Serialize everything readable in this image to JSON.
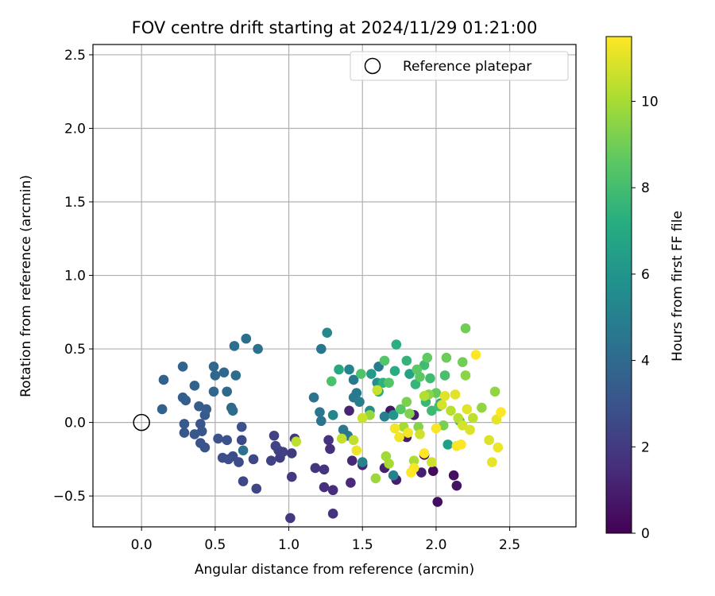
{
  "chart_data": {
    "type": "scatter",
    "title": "FOV centre drift starting at 2024/11/29 01:21:00",
    "xlabel": "Angular distance from reference (arcmin)",
    "ylabel": "Rotation from reference (arcmin)",
    "xlim": [
      -0.33,
      2.95
    ],
    "ylim": [
      -0.71,
      2.57
    ],
    "xticks": [
      0.0,
      0.5,
      1.0,
      1.5,
      2.0,
      2.5
    ],
    "yticks": [
      -0.5,
      0.0,
      0.5,
      1.0,
      1.5,
      2.0,
      2.5
    ],
    "xtick_labels": [
      "0.0",
      "0.5",
      "1.0",
      "1.5",
      "2.0",
      "2.5"
    ],
    "ytick_labels": [
      "−0.5",
      "0.0",
      "0.5",
      "1.0",
      "1.5",
      "2.0",
      "2.5"
    ],
    "grid": true,
    "legend_position": "top-right",
    "legend": [
      {
        "label": "Reference platepar",
        "marker": "open-circle"
      }
    ],
    "reference_point": {
      "x": 0.0,
      "y": 0.0
    },
    "colorbar": {
      "label": "Hours from first FF file",
      "colormap": "viridis",
      "range": [
        0,
        11.5
      ],
      "ticks": [
        0,
        2,
        4,
        6,
        8,
        10
      ],
      "tick_labels": [
        "0",
        "2",
        "4",
        "6",
        "8",
        "10"
      ]
    },
    "points": [
      [
        1.92,
        -0.22,
        0.2
      ],
      [
        1.98,
        -0.33,
        0.3
      ],
      [
        2.01,
        -0.54,
        0.4
      ],
      [
        2.12,
        -0.36,
        0.5
      ],
      [
        2.14,
        -0.43,
        0.6
      ],
      [
        1.69,
        0.08,
        0.7
      ],
      [
        1.85,
        0.05,
        0.8
      ],
      [
        1.8,
        -0.1,
        0.9
      ],
      [
        1.73,
        -0.39,
        1.0
      ],
      [
        1.9,
        -0.34,
        1.0
      ],
      [
        1.65,
        -0.31,
        1.1
      ],
      [
        1.5,
        -0.29,
        1.2
      ],
      [
        1.41,
        0.08,
        1.2
      ],
      [
        1.43,
        -0.26,
        1.3
      ],
      [
        1.42,
        -0.41,
        1.4
      ],
      [
        1.3,
        -0.46,
        1.5
      ],
      [
        1.24,
        -0.44,
        1.6
      ],
      [
        1.28,
        -0.18,
        1.6
      ],
      [
        1.27,
        -0.12,
        1.7
      ],
      [
        1.3,
        -0.62,
        1.7
      ],
      [
        1.18,
        -0.31,
        1.8
      ],
      [
        1.24,
        -0.32,
        1.8
      ],
      [
        1.04,
        -0.11,
        1.9
      ],
      [
        1.02,
        -0.21,
        2.0
      ],
      [
        1.02,
        -0.37,
        2.0
      ],
      [
        1.01,
        -0.65,
        2.0
      ],
      [
        0.94,
        -0.24,
        2.1
      ],
      [
        0.93,
        -0.19,
        2.2
      ],
      [
        0.96,
        -0.2,
        2.2
      ],
      [
        0.88,
        -0.26,
        2.3
      ],
      [
        0.9,
        -0.09,
        2.3
      ],
      [
        0.91,
        -0.16,
        2.4
      ],
      [
        0.78,
        -0.45,
        2.4
      ],
      [
        0.69,
        -0.4,
        2.5
      ],
      [
        0.76,
        -0.25,
        2.5
      ],
      [
        0.68,
        -0.12,
        2.6
      ],
      [
        0.62,
        -0.23,
        2.7
      ],
      [
        0.66,
        -0.27,
        2.7
      ],
      [
        0.59,
        -0.25,
        2.8
      ],
      [
        0.55,
        -0.24,
        2.8
      ],
      [
        0.58,
        -0.12,
        2.9
      ],
      [
        0.68,
        -0.03,
        2.9
      ],
      [
        0.52,
        -0.11,
        3.0
      ],
      [
        0.43,
        -0.17,
        3.0
      ],
      [
        0.4,
        -0.14,
        3.0
      ],
      [
        0.41,
        -0.06,
        3.1
      ],
      [
        0.4,
        -0.01,
        3.1
      ],
      [
        0.36,
        -0.08,
        3.2
      ],
      [
        0.29,
        -0.07,
        3.2
      ],
      [
        0.29,
        -0.01,
        3.3
      ],
      [
        0.43,
        0.05,
        3.3
      ],
      [
        0.39,
        0.11,
        3.4
      ],
      [
        0.44,
        0.09,
        3.4
      ],
      [
        0.28,
        0.17,
        3.5
      ],
      [
        0.3,
        0.15,
        3.5
      ],
      [
        0.14,
        0.09,
        3.6
      ],
      [
        0.15,
        0.29,
        3.6
      ],
      [
        0.28,
        0.38,
        3.7
      ],
      [
        0.36,
        0.25,
        3.7
      ],
      [
        0.49,
        0.21,
        3.8
      ],
      [
        0.49,
        0.38,
        3.8
      ],
      [
        0.5,
        0.32,
        3.9
      ],
      [
        0.56,
        0.34,
        3.9
      ],
      [
        0.58,
        0.21,
        4.0
      ],
      [
        0.61,
        0.1,
        4.0
      ],
      [
        0.62,
        0.08,
        4.1
      ],
      [
        0.64,
        0.32,
        4.1
      ],
      [
        0.63,
        0.52,
        4.2
      ],
      [
        0.71,
        0.57,
        4.2
      ],
      [
        0.79,
        0.5,
        4.3
      ],
      [
        0.69,
        -0.19,
        4.3
      ],
      [
        1.22,
        0.01,
        4.4
      ],
      [
        1.17,
        0.17,
        4.4
      ],
      [
        1.21,
        0.07,
        4.5
      ],
      [
        1.22,
        0.5,
        4.5
      ],
      [
        1.37,
        -0.05,
        4.6
      ],
      [
        1.4,
        -0.09,
        4.6
      ],
      [
        1.44,
        0.17,
        4.7
      ],
      [
        1.46,
        0.2,
        4.7
      ],
      [
        1.44,
        0.29,
        4.7
      ],
      [
        1.48,
        0.14,
        4.8
      ],
      [
        1.61,
        0.38,
        4.8
      ],
      [
        1.65,
        0.04,
        4.9
      ],
      [
        1.71,
        -0.36,
        5.0
      ],
      [
        1.5,
        -0.27,
        5.1
      ],
      [
        1.41,
        0.36,
        5.2
      ],
      [
        1.3,
        0.05,
        5.3
      ],
      [
        1.26,
        0.61,
        5.4
      ],
      [
        1.55,
        0.08,
        5.6
      ],
      [
        1.6,
        0.27,
        5.8
      ],
      [
        1.71,
        0.05,
        6.0
      ],
      [
        1.56,
        0.33,
        6.3
      ],
      [
        2.08,
        -0.15,
        6.5
      ],
      [
        1.82,
        0.33,
        6.7
      ],
      [
        2.03,
        0.13,
        6.9
      ],
      [
        1.34,
        0.36,
        7.0
      ],
      [
        1.61,
        0.21,
        7.1
      ],
      [
        1.72,
        0.35,
        7.2
      ],
      [
        1.73,
        0.53,
        7.3
      ],
      [
        1.64,
        0.27,
        7.4
      ],
      [
        1.8,
        0.42,
        7.5
      ],
      [
        1.86,
        0.26,
        7.6
      ],
      [
        1.93,
        0.14,
        7.7
      ],
      [
        1.97,
        0.08,
        7.8
      ],
      [
        1.92,
        0.39,
        7.9
      ],
      [
        1.96,
        0.3,
        7.9
      ],
      [
        2.02,
        0.11,
        8.0
      ],
      [
        2.06,
        0.32,
        8.1
      ],
      [
        2.16,
        0.01,
        8.1
      ],
      [
        1.29,
        0.28,
        8.2
      ],
      [
        1.49,
        0.33,
        8.3
      ],
      [
        1.65,
        0.42,
        8.4
      ],
      [
        1.68,
        0.27,
        8.4
      ],
      [
        1.76,
        0.09,
        8.5
      ],
      [
        1.87,
        0.36,
        8.6
      ],
      [
        1.89,
        0.31,
        8.6
      ],
      [
        1.94,
        0.44,
        8.7
      ],
      [
        2.0,
        0.2,
        8.8
      ],
      [
        2.07,
        0.44,
        8.9
      ],
      [
        2.18,
        0.41,
        9.0
      ],
      [
        2.2,
        0.64,
        9.0
      ],
      [
        2.05,
        -0.02,
        9.1
      ],
      [
        1.8,
        0.14,
        9.2
      ],
      [
        1.82,
        0.06,
        9.3
      ],
      [
        1.88,
        -0.03,
        9.4
      ],
      [
        1.95,
        0.19,
        9.5
      ],
      [
        2.2,
        0.32,
        9.5
      ],
      [
        2.31,
        0.1,
        9.6
      ],
      [
        2.4,
        0.21,
        9.6
      ],
      [
        1.55,
        0.05,
        9.7
      ],
      [
        1.59,
        -0.38,
        9.8
      ],
      [
        1.66,
        -0.23,
        9.9
      ],
      [
        1.68,
        -0.28,
        10.0
      ],
      [
        1.78,
        -0.03,
        10.0
      ],
      [
        1.85,
        -0.26,
        10.1
      ],
      [
        1.92,
        0.18,
        10.2
      ],
      [
        2.1,
        0.08,
        10.3
      ],
      [
        2.15,
        0.03,
        10.3
      ],
      [
        2.25,
        0.03,
        10.4
      ],
      [
        1.05,
        -0.13,
        10.4
      ],
      [
        1.36,
        -0.11,
        10.5
      ],
      [
        1.44,
        -0.12,
        10.5
      ],
      [
        1.5,
        0.03,
        10.6
      ],
      [
        1.6,
        0.22,
        10.6
      ],
      [
        1.89,
        -0.08,
        10.7
      ],
      [
        1.97,
        -0.27,
        10.7
      ],
      [
        2.04,
        0.12,
        10.8
      ],
      [
        2.18,
        -0.02,
        10.8
      ],
      [
        2.23,
        -0.05,
        10.9
      ],
      [
        2.36,
        -0.12,
        10.9
      ],
      [
        2.06,
        0.18,
        11.0
      ],
      [
        2.13,
        0.19,
        11.0
      ],
      [
        2.21,
        0.09,
        11.0
      ],
      [
        2.38,
        -0.27,
        11.1
      ],
      [
        2.41,
        0.02,
        11.1
      ],
      [
        2.42,
        -0.17,
        11.2
      ],
      [
        1.46,
        -0.19,
        11.2
      ],
      [
        1.72,
        -0.04,
        11.3
      ],
      [
        1.75,
        -0.1,
        11.3
      ],
      [
        1.81,
        -0.07,
        11.3
      ],
      [
        1.85,
        -0.31,
        11.4
      ],
      [
        2.0,
        -0.04,
        11.4
      ],
      [
        2.14,
        -0.16,
        11.4
      ],
      [
        2.17,
        -0.15,
        11.5
      ],
      [
        2.27,
        0.46,
        11.5
      ],
      [
        2.44,
        0.07,
        11.5
      ],
      [
        1.92,
        -0.21,
        11.5
      ],
      [
        1.83,
        -0.34,
        11.5
      ]
    ]
  }
}
